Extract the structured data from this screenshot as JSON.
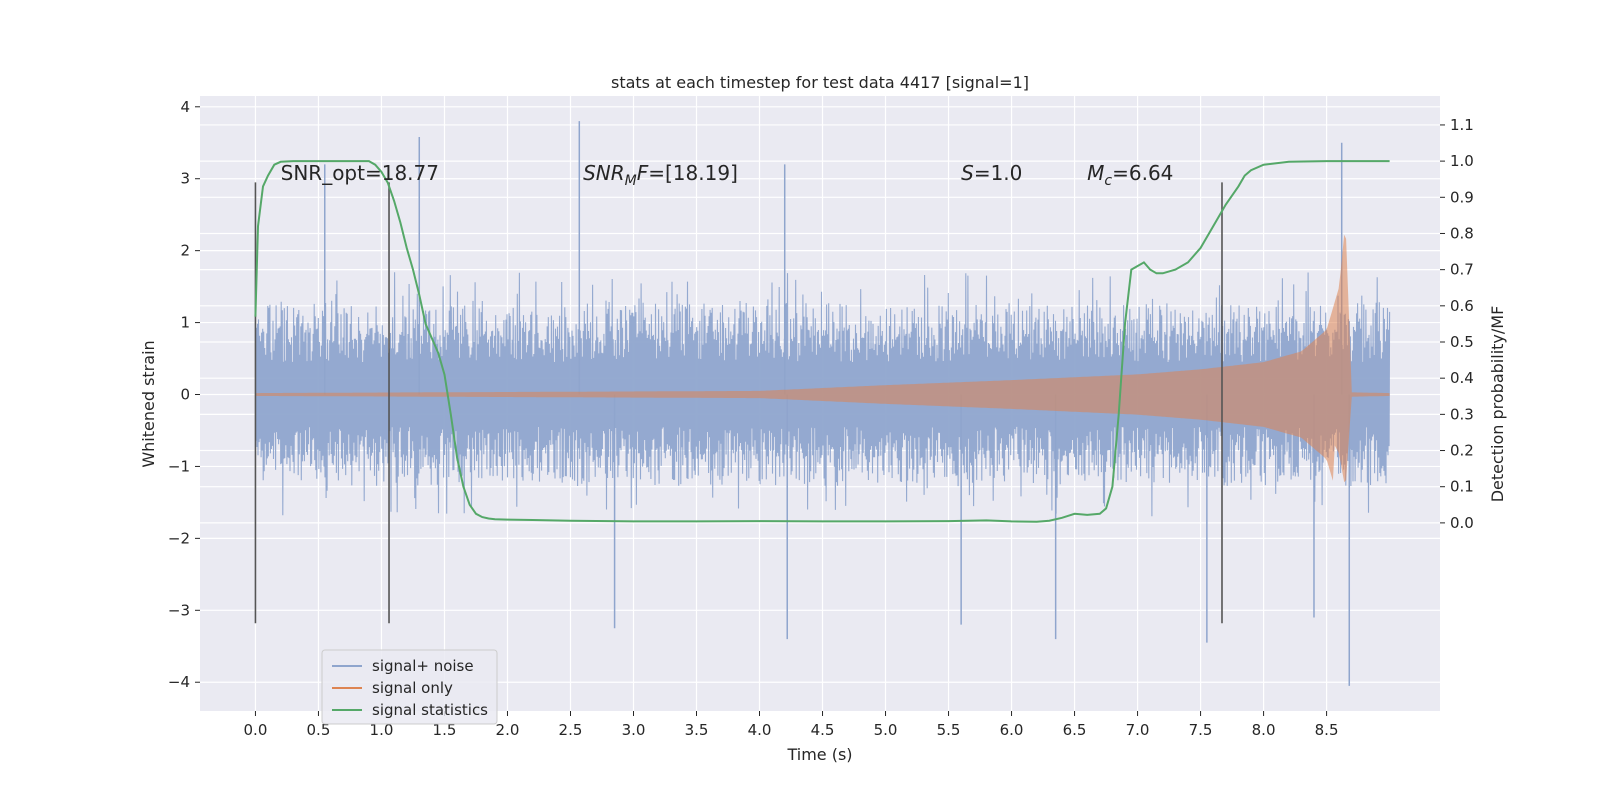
{
  "chart_data": {
    "type": "line",
    "title": "stats at each timestep for test data 4417 [signal=1]",
    "xlabel": "Time (s)",
    "ylabel": "Whitened strain",
    "ylabel_right": "Detection probability/MF",
    "xlim": [
      -0.44,
      9.4
    ],
    "ylim": [
      -4.4,
      4.15
    ],
    "ylim_right": [
      -0.52,
      1.18
    ],
    "x_ticks": [
      0.0,
      0.5,
      1.0,
      1.5,
      2.0,
      2.5,
      3.0,
      3.5,
      4.0,
      4.5,
      5.0,
      5.5,
      6.0,
      6.5,
      7.0,
      7.5,
      8.0,
      8.5
    ],
    "x_tick_labels": [
      "0.0",
      "0.5",
      "1.0",
      "1.5",
      "2.0",
      "2.5",
      "3.0",
      "3.5",
      "4.0",
      "4.5",
      "5.0",
      "5.5",
      "6.0",
      "6.5",
      "7.0",
      "7.5",
      "8.0",
      "8.5"
    ],
    "y_ticks": [
      -4,
      -3,
      -2,
      -1,
      0,
      1,
      2,
      3,
      4
    ],
    "y_tick_labels": [
      "−4",
      "−3",
      "−2",
      "−1",
      "0",
      "1",
      "2",
      "3",
      "4"
    ],
    "y_right_ticks": [
      0.0,
      0.1,
      0.2,
      0.3,
      0.4,
      0.5,
      0.6,
      0.7,
      0.8,
      0.9,
      1.0,
      1.1
    ],
    "y_right_tick_labels": [
      "0.0",
      "0.1",
      "0.2",
      "0.3",
      "0.4",
      "0.5",
      "0.6",
      "0.7",
      "0.8",
      "0.9",
      "1.0",
      "1.1"
    ],
    "grid": true,
    "legend_position": "lower-left",
    "series": [
      {
        "name": "signal+ noise",
        "axis": "left",
        "color": "#8fa5cd",
        "x_range": [
          0.0,
          9.0
        ],
        "envelope_upper": 1.6,
        "envelope_lower": -1.6,
        "spikes": [
          {
            "x": 1.3,
            "y": 3.58
          },
          {
            "x": 2.57,
            "y": 3.8
          },
          {
            "x": 8.62,
            "y": 3.5
          },
          {
            "x": 4.2,
            "y": 3.2
          },
          {
            "x": 8.68,
            "y": -4.05
          },
          {
            "x": 6.35,
            "y": -3.4
          },
          {
            "x": 7.55,
            "y": -3.45
          },
          {
            "x": 4.22,
            "y": -3.4
          },
          {
            "x": 2.85,
            "y": -3.25
          },
          {
            "x": 0.55,
            "y": 3.2
          },
          {
            "x": 5.6,
            "y": -3.2
          },
          {
            "x": 8.4,
            "y": -3.1
          }
        ]
      },
      {
        "name": "signal only",
        "axis": "left",
        "color": "#dd8452",
        "description_values": [
          {
            "x": 0.0,
            "amp": 0.02
          },
          {
            "x": 4.0,
            "amp": 0.05
          },
          {
            "x": 5.0,
            "amp": 0.13
          },
          {
            "x": 6.0,
            "amp": 0.2
          },
          {
            "x": 7.0,
            "amp": 0.28
          },
          {
            "x": 7.5,
            "amp": 0.35
          },
          {
            "x": 8.0,
            "amp": 0.45
          },
          {
            "x": 8.3,
            "amp": 0.6
          },
          {
            "x": 8.5,
            "amp": 0.9
          },
          {
            "x": 8.6,
            "amp": 1.5
          },
          {
            "x": 8.65,
            "amp": 2.4
          },
          {
            "x": 8.7,
            "amp": 0.03
          },
          {
            "x": 9.0,
            "amp": 0.02
          }
        ]
      },
      {
        "name": "signal statistics",
        "axis": "right",
        "color": "#55a868",
        "x": [
          0.0,
          0.02,
          0.06,
          0.1,
          0.15,
          0.2,
          0.3,
          0.4,
          0.5,
          0.6,
          0.7,
          0.8,
          0.9,
          0.95,
          1.0,
          1.05,
          1.1,
          1.15,
          1.2,
          1.25,
          1.3,
          1.35,
          1.4,
          1.45,
          1.5,
          1.55,
          1.6,
          1.65,
          1.7,
          1.75,
          1.8,
          1.85,
          1.9,
          2.0,
          2.2,
          2.5,
          3.0,
          3.5,
          4.0,
          4.5,
          5.0,
          5.5,
          5.8,
          6.0,
          6.2,
          6.3,
          6.4,
          6.5,
          6.6,
          6.7,
          6.75,
          6.8,
          6.85,
          6.9,
          6.95,
          7.0,
          7.05,
          7.1,
          7.15,
          7.2,
          7.3,
          7.4,
          7.5,
          7.6,
          7.7,
          7.8,
          7.85,
          7.9,
          8.0,
          8.2,
          8.5,
          8.8,
          9.0
        ],
        "y": [
          0.57,
          0.82,
          0.93,
          0.96,
          0.99,
          0.998,
          1.0,
          1.0,
          1.0,
          1.0,
          1.0,
          1.0,
          1.0,
          0.99,
          0.97,
          0.94,
          0.89,
          0.83,
          0.76,
          0.7,
          0.63,
          0.55,
          0.51,
          0.47,
          0.41,
          0.3,
          0.18,
          0.1,
          0.05,
          0.025,
          0.016,
          0.012,
          0.01,
          0.009,
          0.008,
          0.006,
          0.004,
          0.004,
          0.005,
          0.004,
          0.004,
          0.005,
          0.007,
          0.004,
          0.003,
          0.006,
          0.014,
          0.025,
          0.022,
          0.025,
          0.04,
          0.1,
          0.3,
          0.55,
          0.7,
          0.71,
          0.72,
          0.7,
          0.69,
          0.69,
          0.7,
          0.72,
          0.76,
          0.82,
          0.88,
          0.93,
          0.96,
          0.975,
          0.99,
          0.998,
          1.0,
          1.0,
          1.0
        ]
      }
    ],
    "vertical_markers": [
      0.0,
      1.06,
      7.67
    ],
    "annotations": [
      {
        "id": "snr-opt",
        "x": 0.2,
        "y": 2.98,
        "text": "SNR_opt=18.77",
        "math": false
      },
      {
        "id": "snr-mf",
        "x": 2.6,
        "y": 2.98,
        "base": "SNR",
        "sub": "M",
        "tail": "F=[18.19]",
        "math": true
      },
      {
        "id": "s-stat",
        "x": 5.6,
        "y": 2.98,
        "base": "S",
        "sub": "",
        "tail": "=1.0",
        "math": true
      },
      {
        "id": "mc",
        "x": 6.6,
        "y": 2.98,
        "base": "M",
        "sub": "c",
        "tail": "=6.64",
        "math": true
      }
    ]
  }
}
